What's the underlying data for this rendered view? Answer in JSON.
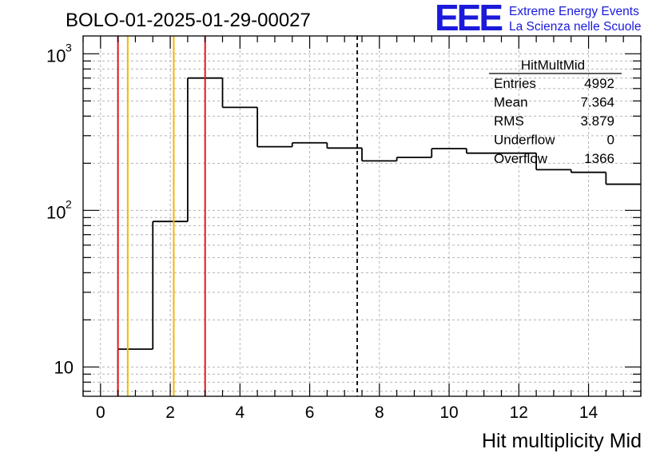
{
  "header": {
    "run_title": "BOLO-01-2025-01-29-00027",
    "logo_letters": "EEE",
    "logo_line1": "Extreme Energy Events",
    "logo_line2": "La Scienza nelle Scuole"
  },
  "stats": {
    "name": "HitMultMid",
    "rows": [
      {
        "label": "Entries",
        "value": "4992"
      },
      {
        "label": "Mean",
        "value": "7.364"
      },
      {
        "label": "RMS",
        "value": "3.879"
      },
      {
        "label": "Underflow",
        "value": "0"
      },
      {
        "label": "Overflow",
        "value": "1366"
      }
    ]
  },
  "colors": {
    "red_line": "#e8141e",
    "orange_line": "#f5b800",
    "histogram": "#000000",
    "grid": "#b4b4b4",
    "logo": "#1a1adb"
  },
  "chart_data": {
    "type": "histogram",
    "title": "BOLO-01-2025-01-29-00027",
    "xlabel": "Hit multiplicity Mid",
    "ylabel": "",
    "x_scale": "linear",
    "y_scale": "log",
    "xlim": [
      -0.5,
      15.5
    ],
    "ylim": [
      6.5,
      1300
    ],
    "grid": true,
    "x_ticks": [
      0,
      2,
      4,
      6,
      8,
      10,
      12,
      14
    ],
    "y_ticks": [
      {
        "value": 10,
        "label": "10"
      },
      {
        "value": 100,
        "label": "10",
        "exp": "2"
      },
      {
        "value": 1000,
        "label": "10",
        "exp": "3"
      }
    ],
    "bins": {
      "edges": [
        -0.5,
        0.5,
        1.5,
        2.5,
        3.5,
        4.5,
        5.5,
        6.5,
        7.5,
        8.5,
        9.5,
        10.5,
        11.5,
        12.5,
        13.5,
        14.5,
        15.5
      ],
      "counts": [
        0,
        13,
        85,
        700,
        455,
        255,
        270,
        250,
        207,
        218,
        248,
        232,
        232,
        182,
        175,
        147
      ]
    },
    "vertical_lines": [
      {
        "x": 0.5,
        "color": "red",
        "style": "solid"
      },
      {
        "x": 0.78,
        "color": "orange",
        "style": "solid"
      },
      {
        "x": 2.1,
        "color": "orange",
        "style": "solid"
      },
      {
        "x": 3.0,
        "color": "red",
        "style": "solid"
      },
      {
        "x": 7.364,
        "color": "black",
        "style": "dashed"
      }
    ]
  }
}
